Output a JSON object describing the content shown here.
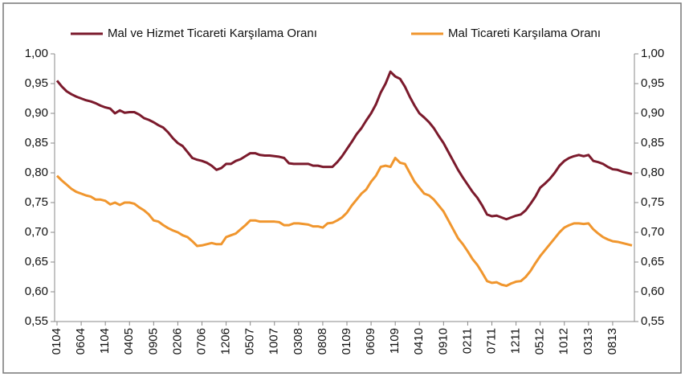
{
  "chart_data": {
    "type": "line",
    "categories": [
      "0104",
      null,
      null,
      null,
      null,
      "0604",
      null,
      null,
      null,
      null,
      "1104",
      null,
      null,
      null,
      null,
      "0405",
      null,
      null,
      null,
      null,
      "0905",
      null,
      null,
      null,
      null,
      "0206",
      null,
      null,
      null,
      null,
      "0706",
      null,
      null,
      null,
      null,
      "1206",
      null,
      null,
      null,
      null,
      "0507",
      null,
      null,
      null,
      null,
      "1007",
      null,
      null,
      null,
      null,
      "0308",
      null,
      null,
      null,
      null,
      "0808",
      null,
      null,
      null,
      null,
      "0109",
      null,
      null,
      null,
      null,
      "0609",
      null,
      null,
      null,
      null,
      "1109",
      null,
      null,
      null,
      null,
      "0410",
      null,
      null,
      null,
      null,
      "0910",
      null,
      null,
      null,
      null,
      "0211",
      null,
      null,
      null,
      null,
      "0711",
      null,
      null,
      null,
      null,
      "1211",
      null,
      null,
      null,
      null,
      "0512",
      null,
      null,
      null,
      null,
      "1012",
      null,
      null,
      null,
      null,
      "0313",
      null,
      null,
      null,
      null,
      "0813",
      null,
      null,
      null,
      null
    ],
    "series": [
      {
        "name": "Mal ve Hizmet Ticareti Karşılama Oranı",
        "color": "#7b1a2c",
        "values": [
          0.955,
          0.945,
          0.937,
          0.932,
          0.928,
          0.925,
          0.922,
          0.92,
          0.917,
          0.913,
          0.91,
          0.908,
          0.9,
          0.905,
          0.901,
          0.902,
          0.902,
          0.898,
          0.892,
          0.889,
          0.885,
          0.88,
          0.876,
          0.868,
          0.858,
          0.85,
          0.845,
          0.835,
          0.825,
          0.822,
          0.82,
          0.817,
          0.812,
          0.805,
          0.808,
          0.815,
          0.815,
          0.82,
          0.823,
          0.828,
          0.833,
          0.833,
          0.83,
          0.829,
          0.829,
          0.828,
          0.827,
          0.825,
          0.816,
          0.815,
          0.815,
          0.815,
          0.815,
          0.812,
          0.812,
          0.81,
          0.81,
          0.81,
          0.818,
          0.828,
          0.84,
          0.852,
          0.865,
          0.875,
          0.888,
          0.9,
          0.915,
          0.935,
          0.95,
          0.97,
          0.962,
          0.958,
          0.945,
          0.928,
          0.913,
          0.9,
          0.893,
          0.885,
          0.875,
          0.862,
          0.85,
          0.835,
          0.82,
          0.805,
          0.792,
          0.78,
          0.768,
          0.758,
          0.745,
          0.73,
          0.727,
          0.728,
          0.725,
          0.722,
          0.725,
          0.728,
          0.73,
          0.737,
          0.748,
          0.76,
          0.775,
          0.782,
          0.79,
          0.8,
          0.812,
          0.82,
          0.825,
          0.828,
          0.83,
          0.828,
          0.83,
          0.82,
          0.818,
          0.815,
          0.81,
          0.806,
          0.805,
          0.802,
          0.8,
          0.798
        ]
      },
      {
        "name": "Mal Ticareti Karşılama Oranı",
        "color": "#f0962e",
        "values": [
          0.795,
          0.787,
          0.78,
          0.773,
          0.768,
          0.765,
          0.762,
          0.76,
          0.755,
          0.755,
          0.753,
          0.747,
          0.75,
          0.746,
          0.75,
          0.75,
          0.748,
          0.742,
          0.737,
          0.73,
          0.72,
          0.718,
          0.712,
          0.707,
          0.703,
          0.7,
          0.695,
          0.692,
          0.685,
          0.677,
          0.678,
          0.68,
          0.682,
          0.68,
          0.68,
          0.692,
          0.695,
          0.698,
          0.705,
          0.712,
          0.72,
          0.72,
          0.718,
          0.718,
          0.718,
          0.718,
          0.717,
          0.712,
          0.712,
          0.715,
          0.715,
          0.714,
          0.713,
          0.71,
          0.71,
          0.708,
          0.715,
          0.716,
          0.72,
          0.725,
          0.733,
          0.745,
          0.755,
          0.765,
          0.772,
          0.785,
          0.795,
          0.81,
          0.812,
          0.81,
          0.825,
          0.817,
          0.815,
          0.8,
          0.785,
          0.775,
          0.765,
          0.762,
          0.755,
          0.745,
          0.735,
          0.72,
          0.705,
          0.69,
          0.68,
          0.668,
          0.655,
          0.645,
          0.632,
          0.618,
          0.615,
          0.616,
          0.612,
          0.61,
          0.614,
          0.617,
          0.618,
          0.625,
          0.635,
          0.648,
          0.66,
          0.67,
          0.68,
          0.69,
          0.7,
          0.708,
          0.712,
          0.715,
          0.715,
          0.714,
          0.715,
          0.705,
          0.698,
          0.692,
          0.688,
          0.685,
          0.684,
          0.682,
          0.68,
          0.678
        ]
      }
    ],
    "ylim": [
      0.55,
      1.0
    ],
    "yticks": [
      {
        "value": 0.55,
        "label": "0,55"
      },
      {
        "value": 0.6,
        "label": "0,60"
      },
      {
        "value": 0.65,
        "label": "0,65"
      },
      {
        "value": 0.7,
        "label": "0,70"
      },
      {
        "value": 0.75,
        "label": "0,75"
      },
      {
        "value": 0.8,
        "label": "0,80"
      },
      {
        "value": 0.85,
        "label": "0,85"
      },
      {
        "value": 0.9,
        "label": "0,90"
      },
      {
        "value": 0.95,
        "label": "0,95"
      },
      {
        "value": 1.0,
        "label": "1,00"
      }
    ],
    "y2lim": [
      0.55,
      1.0
    ],
    "y2ticks": [
      {
        "value": 0.55,
        "label": "0,55"
      },
      {
        "value": 0.6,
        "label": "0,60"
      },
      {
        "value": 0.65,
        "label": "0,65"
      },
      {
        "value": 0.7,
        "label": "0,70"
      },
      {
        "value": 0.75,
        "label": "0,75"
      },
      {
        "value": 0.8,
        "label": "0,80"
      },
      {
        "value": 0.85,
        "label": "0,85"
      },
      {
        "value": 0.9,
        "label": "0,90"
      },
      {
        "value": 0.95,
        "label": "0,95"
      },
      {
        "value": 1.0,
        "label": "1,00"
      }
    ],
    "legend": "top",
    "grid": false
  }
}
